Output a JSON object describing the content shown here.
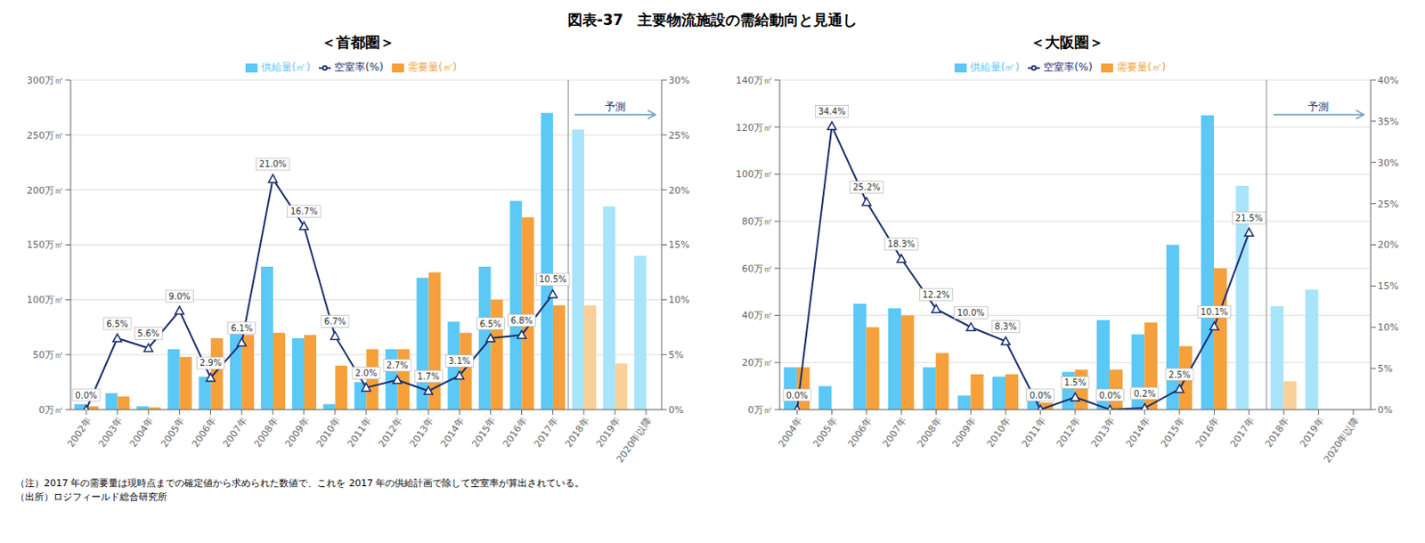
{
  "title": "図表-37　主要物流施設の需給動向と見通し",
  "annotations": [
    "（注）2017 年の需要量は現時点までの確定値から求められた数値で、これを 2017 年の供給計画で除して空室率が算出されている。",
    "（出所）ロジフィールド総合研究所"
  ],
  "chart_data": [
    {
      "type": "bar",
      "title": "＜首都圏＞",
      "categories": [
        "2002年",
        "2003年",
        "2004年",
        "2005年",
        "2006年",
        "2007年",
        "2008年",
        "2009年",
        "2010年",
        "2011年",
        "2012年",
        "2013年",
        "2014年",
        "2015年",
        "2016年",
        "2017年",
        "2018年",
        "2019年",
        "2020年以降"
      ],
      "series": [
        {
          "name": "供給量(㎡)",
          "type": "bar",
          "color": "#5BC8F5",
          "colors": [
            "#5BC8F5",
            "#5BC8F5",
            "#5BC8F5",
            "#5BC8F5",
            "#5BC8F5",
            "#5BC8F5",
            "#5BC8F5",
            "#5BC8F5",
            "#5BC8F5",
            "#5BC8F5",
            "#5BC8F5",
            "#5BC8F5",
            "#5BC8F5",
            "#5BC8F5",
            "#5BC8F5",
            "#5BC8F5",
            "#A8E4FA",
            "#A8E4FA",
            "#A8E4FA"
          ],
          "values": [
            5,
            15,
            3,
            55,
            30,
            70,
            130,
            65,
            5,
            25,
            55,
            120,
            80,
            130,
            190,
            270,
            255,
            185,
            140
          ]
        },
        {
          "name": "需要量(㎡)",
          "type": "bar",
          "color": "#F5A03A",
          "colors": [
            "#F5A03A",
            "#F5A03A",
            "#F5A03A",
            "#F5A03A",
            "#F5A03A",
            "#F5A03A",
            "#F5A03A",
            "#F5A03A",
            "#F5A03A",
            "#F5A03A",
            "#F5A03A",
            "#F5A03A",
            "#F5A03A",
            "#F5A03A",
            "#F5A03A",
            "#F5A03A",
            "#FAD099",
            "#FAD099",
            "#FAD099"
          ],
          "values": [
            3,
            12,
            2,
            48,
            65,
            68,
            70,
            68,
            40,
            55,
            55,
            125,
            70,
            100,
            175,
            95,
            95,
            42,
            0
          ]
        },
        {
          "name": "空室率(%)",
          "type": "line",
          "axis": "y2",
          "color": "#1A2E6E",
          "marker": "triangle",
          "data_labels": true,
          "values": [
            0.0,
            6.5,
            5.6,
            9.0,
            2.9,
            6.1,
            21.0,
            16.7,
            6.7,
            2.0,
            2.7,
            1.7,
            3.1,
            6.5,
            6.8,
            10.5,
            null,
            null,
            null
          ],
          "value_labels": [
            "0.0%",
            "6.5%",
            "5.6%",
            "9.0%",
            "2.9%",
            "6.1%",
            "21.0%",
            "16.7%",
            "6.7%",
            "2.0%",
            "2.7%",
            "1.7%",
            "3.1%",
            "6.5%",
            "6.8%",
            "10.5%",
            null,
            null,
            null
          ]
        }
      ],
      "ylim": [
        0,
        300
      ],
      "yticks": [
        {
          "value": 0,
          "label": "0万㎡"
        },
        {
          "value": 50,
          "label": "50万㎡"
        },
        {
          "value": 100,
          "label": "100万㎡"
        },
        {
          "value": 150,
          "label": "150万㎡"
        },
        {
          "value": 200,
          "label": "200万㎡"
        },
        {
          "value": 250,
          "label": "250万㎡"
        },
        {
          "value": 300,
          "label": "300万㎡"
        }
      ],
      "y2lim": [
        0,
        30
      ],
      "y2ticks": [
        {
          "value": 0,
          "label": "0%"
        },
        {
          "value": 5,
          "label": "5%"
        },
        {
          "value": 10,
          "label": "10%"
        },
        {
          "value": 15,
          "label": "15%"
        },
        {
          "value": 20,
          "label": "20%"
        },
        {
          "value": 25,
          "label": "25%"
        },
        {
          "value": 30,
          "label": "30%"
        }
      ],
      "grid": true,
      "legend": "top",
      "annotations": [
        {
          "text": "予測",
          "x": "2018年"
        }
      ]
    },
    {
      "type": "bar",
      "title": "＜大阪圏＞",
      "categories": [
        "2004年",
        "2005年",
        "2006年",
        "2007年",
        "2008年",
        "2009年",
        "2010年",
        "2011年",
        "2012年",
        "2013年",
        "2014年",
        "2015年",
        "2016年",
        "2017年",
        "2018年",
        "2019年",
        "2020年以降"
      ],
      "series": [
        {
          "name": "供給量(㎡)",
          "type": "bar",
          "color": "#5BC8F5",
          "colors": [
            "#5BC8F5",
            "#5BC8F5",
            "#5BC8F5",
            "#5BC8F5",
            "#5BC8F5",
            "#5BC8F5",
            "#5BC8F5",
            "#5BC8F5",
            "#5BC8F5",
            "#5BC8F5",
            "#5BC8F5",
            "#5BC8F5",
            "#5BC8F5",
            "#A8E4FA",
            "#A8E4FA",
            "#A8E4FA",
            "#A8E4FA"
          ],
          "values": [
            18,
            10,
            45,
            43,
            18,
            6,
            14,
            4,
            16,
            38,
            32,
            70,
            125,
            95,
            44,
            51,
            0
          ]
        },
        {
          "name": "需要量(㎡)",
          "type": "bar",
          "color": "#F5A03A",
          "colors": [
            "#F5A03A",
            "#F5A03A",
            "#F5A03A",
            "#F5A03A",
            "#F5A03A",
            "#F5A03A",
            "#F5A03A",
            "#F5A03A",
            "#F5A03A",
            "#F5A03A",
            "#F5A03A",
            "#F5A03A",
            "#F5A03A",
            "#FAD099",
            "#FAD099",
            "#FAD099",
            "#FAD099"
          ],
          "values": [
            18,
            0,
            35,
            40,
            24,
            15,
            15,
            3,
            17,
            17,
            37,
            27,
            60,
            0,
            12,
            0,
            0
          ]
        },
        {
          "name": "空室率(%)",
          "type": "line",
          "axis": "y2",
          "color": "#1A2E6E",
          "marker": "triangle",
          "data_labels": true,
          "values": [
            0.0,
            34.4,
            25.2,
            18.3,
            12.2,
            10.0,
            8.3,
            0.0,
            1.5,
            0.0,
            0.2,
            2.5,
            10.1,
            21.5,
            null,
            null,
            null
          ],
          "value_labels": [
            "0.0%",
            "34.4%",
            "25.2%",
            "18.3%",
            "12.2%",
            "10.0%",
            "8.3%",
            "0.0%",
            "1.5%",
            "0.0%",
            "0.2%",
            "2.5%",
            "10.1%",
            "21.5%",
            null,
            null,
            null
          ]
        }
      ],
      "ylim": [
        0,
        140
      ],
      "yticks": [
        {
          "value": 0,
          "label": "0万㎡"
        },
        {
          "value": 20,
          "label": "20万㎡"
        },
        {
          "value": 40,
          "label": "40万㎡"
        },
        {
          "value": 60,
          "label": "60万㎡"
        },
        {
          "value": 80,
          "label": "80万㎡"
        },
        {
          "value": 100,
          "label": "100万㎡"
        },
        {
          "value": 120,
          "label": "120万㎡"
        },
        {
          "value": 140,
          "label": "140万㎡"
        }
      ],
      "y2lim": [
        0,
        40
      ],
      "y2ticks": [
        {
          "value": 0,
          "label": "0%"
        },
        {
          "value": 5,
          "label": "5%"
        },
        {
          "value": 10,
          "label": "10%"
        },
        {
          "value": 15,
          "label": "15%"
        },
        {
          "value": 20,
          "label": "20%"
        },
        {
          "value": 25,
          "label": "25%"
        },
        {
          "value": 30,
          "label": "30%"
        },
        {
          "value": 35,
          "label": "35%"
        },
        {
          "value": 40,
          "label": "40%"
        }
      ],
      "grid": true,
      "legend": "top",
      "annotations": [
        {
          "text": "予測",
          "x": "2018年"
        }
      ]
    }
  ]
}
